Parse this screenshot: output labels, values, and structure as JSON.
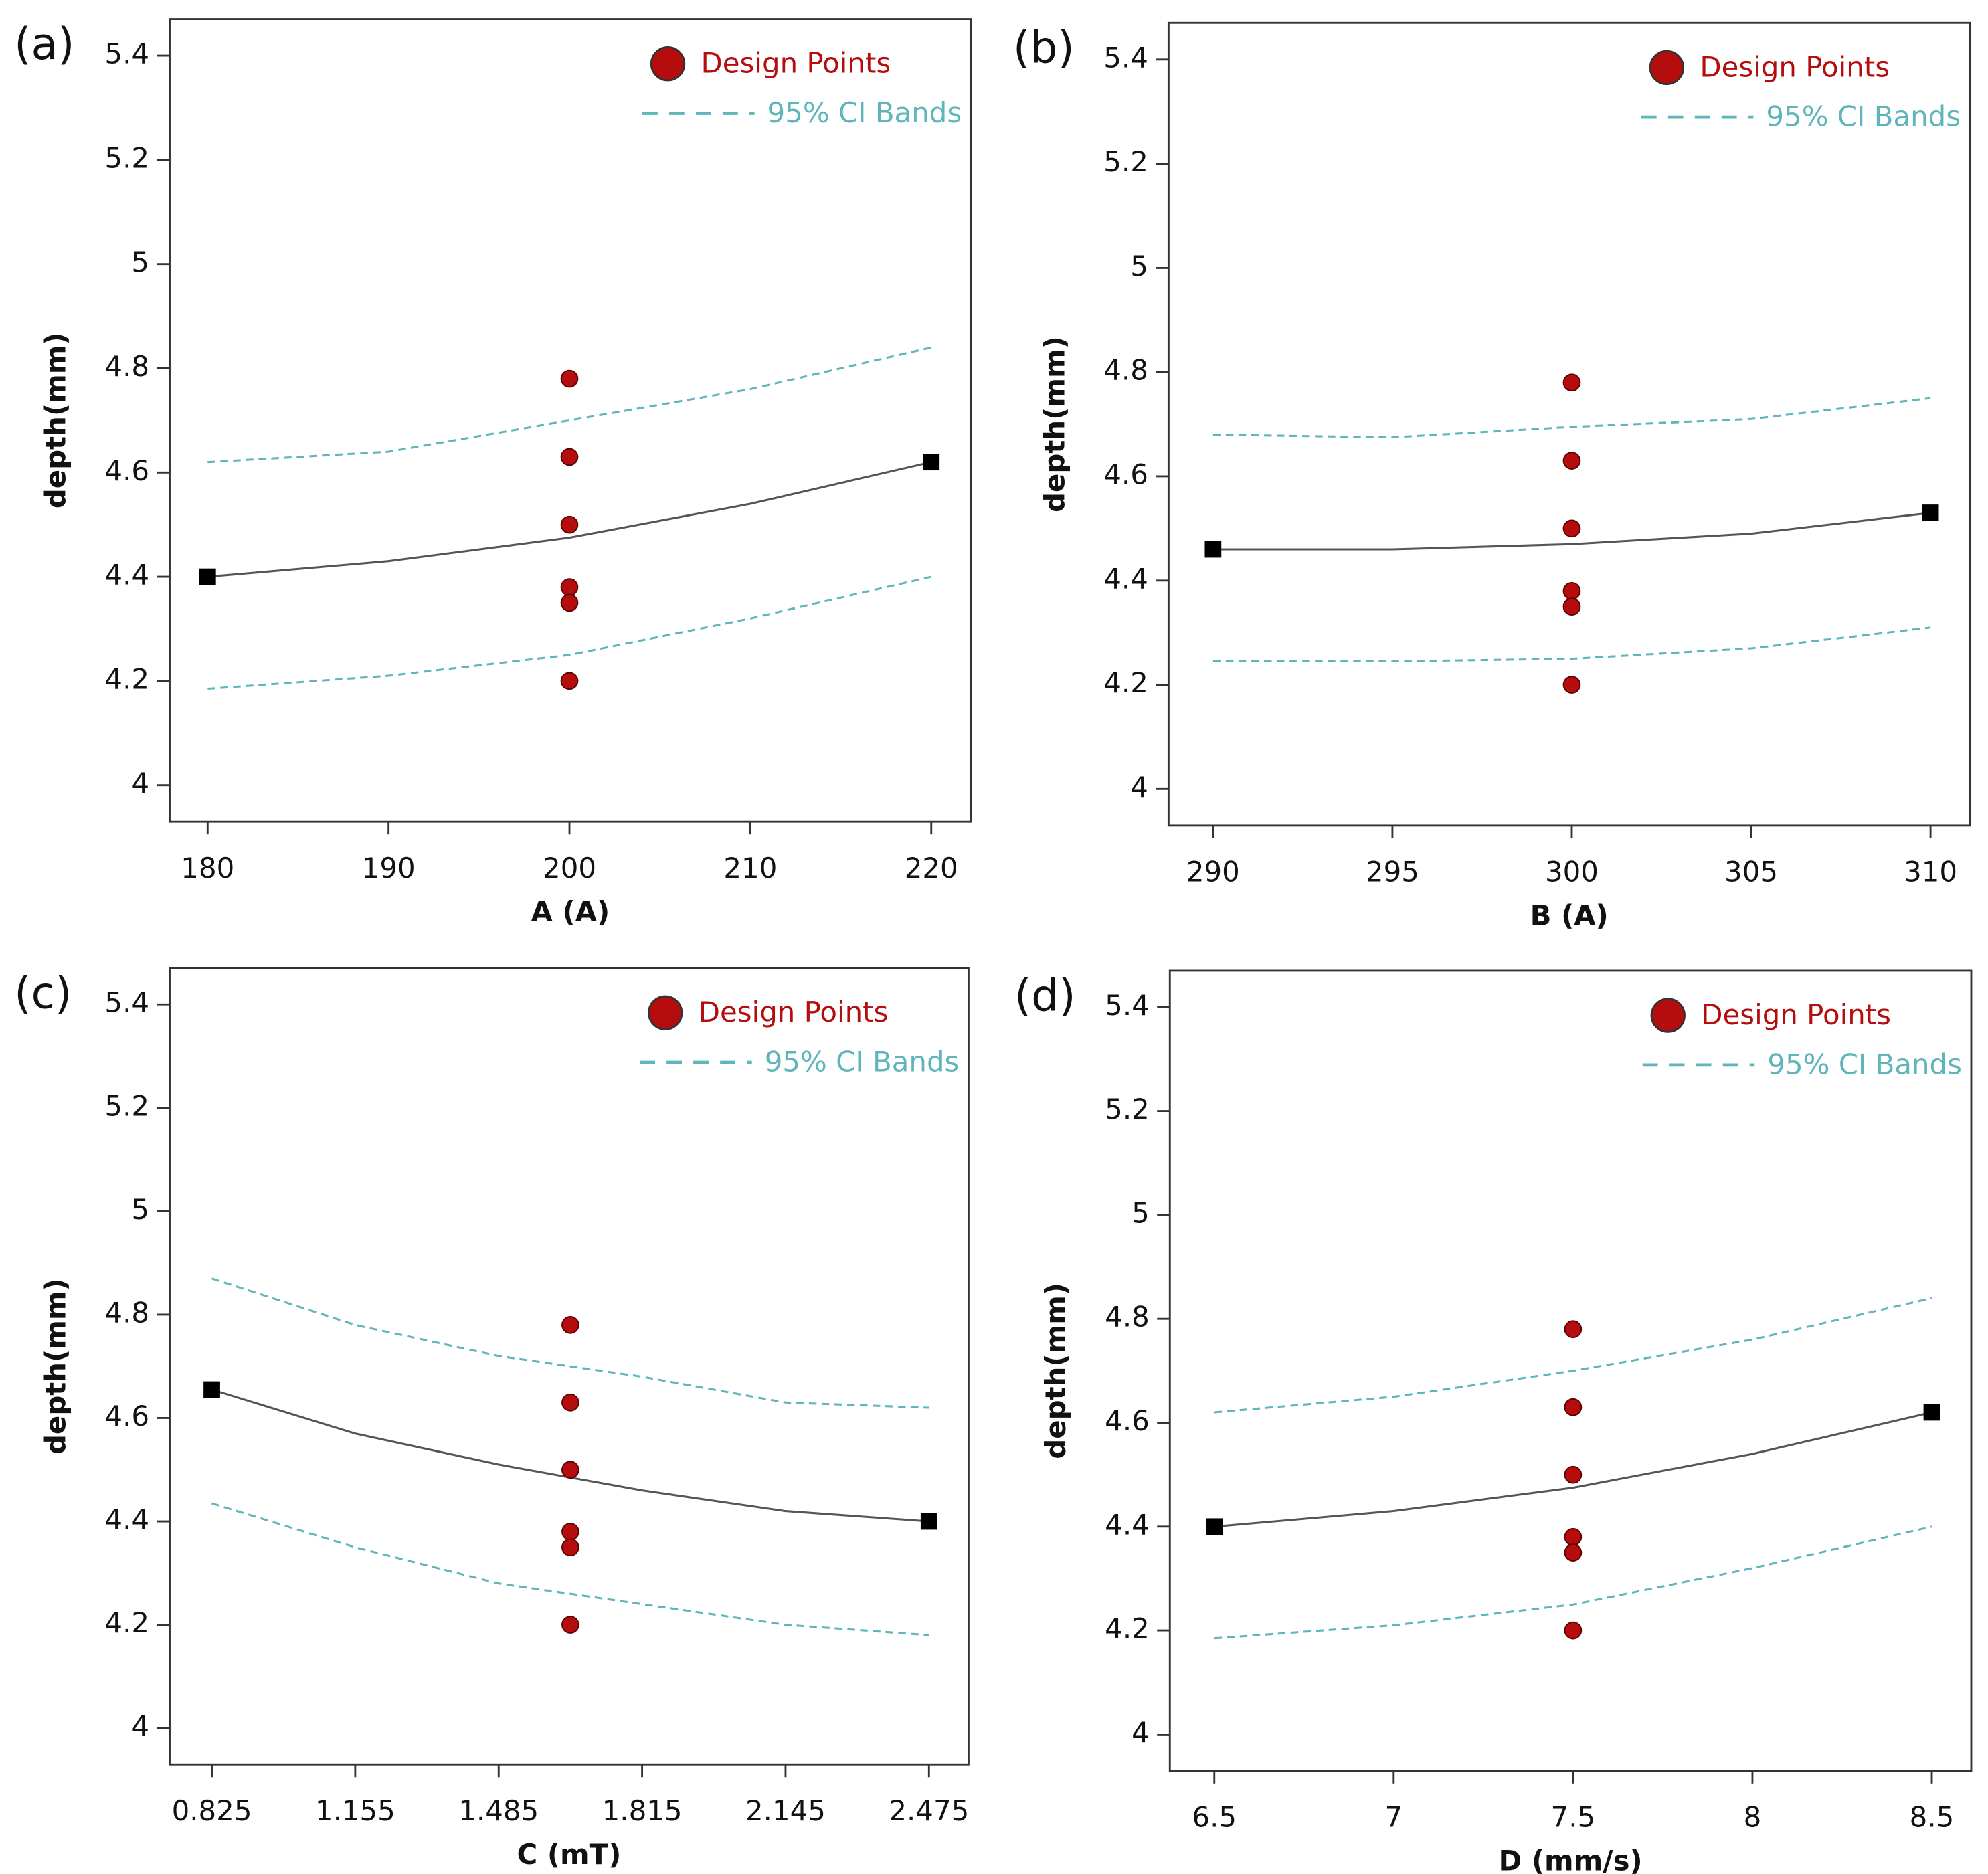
{
  "chart_data": [
    {
      "type": "line",
      "label": "(a)",
      "xlabel": "A (A)",
      "ylabel": "depth(mm)",
      "xlim": [
        177.9,
        222.2
      ],
      "xticks": [
        180,
        190,
        200,
        210,
        220
      ],
      "ylim": [
        3.93,
        5.47
      ],
      "yticks": [
        4,
        4.2,
        4.4,
        4.6,
        4.8,
        5,
        5.2,
        5.4
      ],
      "design_points": {
        "name": "Design Points",
        "color": "#b50d0d",
        "x": [
          200,
          200,
          200,
          200,
          200,
          200
        ],
        "values": [
          4.78,
          4.63,
          4.5,
          4.38,
          4.35,
          4.2
        ]
      },
      "ci_bands": {
        "name": "95% CI Bands",
        "color": "#5fb6ba",
        "x": [
          180,
          190,
          200,
          210,
          220
        ],
        "upper": [
          4.62,
          4.64,
          4.7,
          4.76,
          4.84
        ],
        "lower": [
          4.185,
          4.21,
          4.25,
          4.32,
          4.4
        ]
      },
      "fit": {
        "color": "#555555",
        "x": [
          180,
          190,
          200,
          210,
          220
        ],
        "values": [
          4.4,
          4.43,
          4.475,
          4.54,
          4.62
        ]
      }
    },
    {
      "type": "line",
      "label": "(b)",
      "xlabel": "B (A)",
      "ylabel": "depth(mm)",
      "xlim": [
        288.76,
        311.1
      ],
      "xticks": [
        290,
        295,
        300,
        305,
        310
      ],
      "ylim": [
        3.93,
        5.47
      ],
      "yticks": [
        4,
        4.2,
        4.4,
        4.6,
        4.8,
        5,
        5.2,
        5.4
      ],
      "design_points": {
        "name": "Design Points",
        "color": "#b50d0d",
        "x": [
          300,
          300,
          300,
          300,
          300,
          300
        ],
        "values": [
          4.78,
          4.63,
          4.5,
          4.38,
          4.35,
          4.2
        ]
      },
      "ci_bands": {
        "name": "95% CI Bands",
        "color": "#5fb6ba",
        "x": [
          290,
          295,
          300,
          305,
          310
        ],
        "upper": [
          4.68,
          4.675,
          4.695,
          4.71,
          4.75
        ],
        "lower": [
          4.245,
          4.245,
          4.25,
          4.27,
          4.31
        ]
      },
      "fit": {
        "color": "#555555",
        "x": [
          290,
          295,
          300,
          305,
          310
        ],
        "values": [
          4.46,
          4.46,
          4.47,
          4.49,
          4.53
        ]
      }
    },
    {
      "type": "line",
      "label": "(c)",
      "xlabel": "C (mT)",
      "ylabel": "depth(mm)",
      "xlim": [
        0.728,
        2.566
      ],
      "xticks": [
        0.825,
        1.155,
        1.485,
        1.815,
        2.145,
        2.475
      ],
      "ylim": [
        3.93,
        5.47
      ],
      "yticks": [
        4,
        4.2,
        4.4,
        4.6,
        4.8,
        5,
        5.2,
        5.4
      ],
      "design_points": {
        "name": "Design Points",
        "color": "#b50d0d",
        "x": [
          1.65,
          1.65,
          1.65,
          1.65,
          1.65,
          1.65
        ],
        "values": [
          4.78,
          4.63,
          4.5,
          4.38,
          4.35,
          4.2
        ]
      },
      "ci_bands": {
        "name": "95% CI Bands",
        "color": "#5fb6ba",
        "x": [
          0.825,
          1.155,
          1.485,
          1.815,
          2.145,
          2.475
        ],
        "upper": [
          4.87,
          4.78,
          4.72,
          4.68,
          4.63,
          4.62
        ],
        "lower": [
          4.435,
          4.35,
          4.28,
          4.24,
          4.2,
          4.18
        ]
      },
      "fit": {
        "color": "#555555",
        "x": [
          0.825,
          1.155,
          1.485,
          1.815,
          2.145,
          2.475
        ],
        "values": [
          4.655,
          4.57,
          4.51,
          4.46,
          4.42,
          4.4
        ]
      }
    },
    {
      "type": "line",
      "label": "(d)",
      "xlabel": "D (mm/s)",
      "ylabel": "depth(mm)",
      "xlim": [
        6.376,
        8.61
      ],
      "xticks": [
        6.5,
        7,
        7.5,
        8,
        8.5
      ],
      "ylim": [
        3.93,
        5.47
      ],
      "yticks": [
        4,
        4.2,
        4.4,
        4.6,
        4.8,
        5,
        5.2,
        5.4
      ],
      "design_points": {
        "name": "Design Points",
        "color": "#b50d0d",
        "x": [
          7.5,
          7.5,
          7.5,
          7.5,
          7.5,
          7.5
        ],
        "values": [
          4.78,
          4.63,
          4.5,
          4.38,
          4.35,
          4.2
        ]
      },
      "ci_bands": {
        "name": "95% CI Bands",
        "color": "#5fb6ba",
        "x": [
          6.5,
          7,
          7.5,
          8,
          8.5
        ],
        "upper": [
          4.62,
          4.65,
          4.7,
          4.76,
          4.84
        ],
        "lower": [
          4.185,
          4.21,
          4.25,
          4.32,
          4.4
        ]
      },
      "fit": {
        "color": "#555555",
        "x": [
          6.5,
          7,
          7.5,
          8,
          8.5
        ],
        "values": [
          4.4,
          4.43,
          4.475,
          4.54,
          4.62
        ]
      }
    }
  ]
}
